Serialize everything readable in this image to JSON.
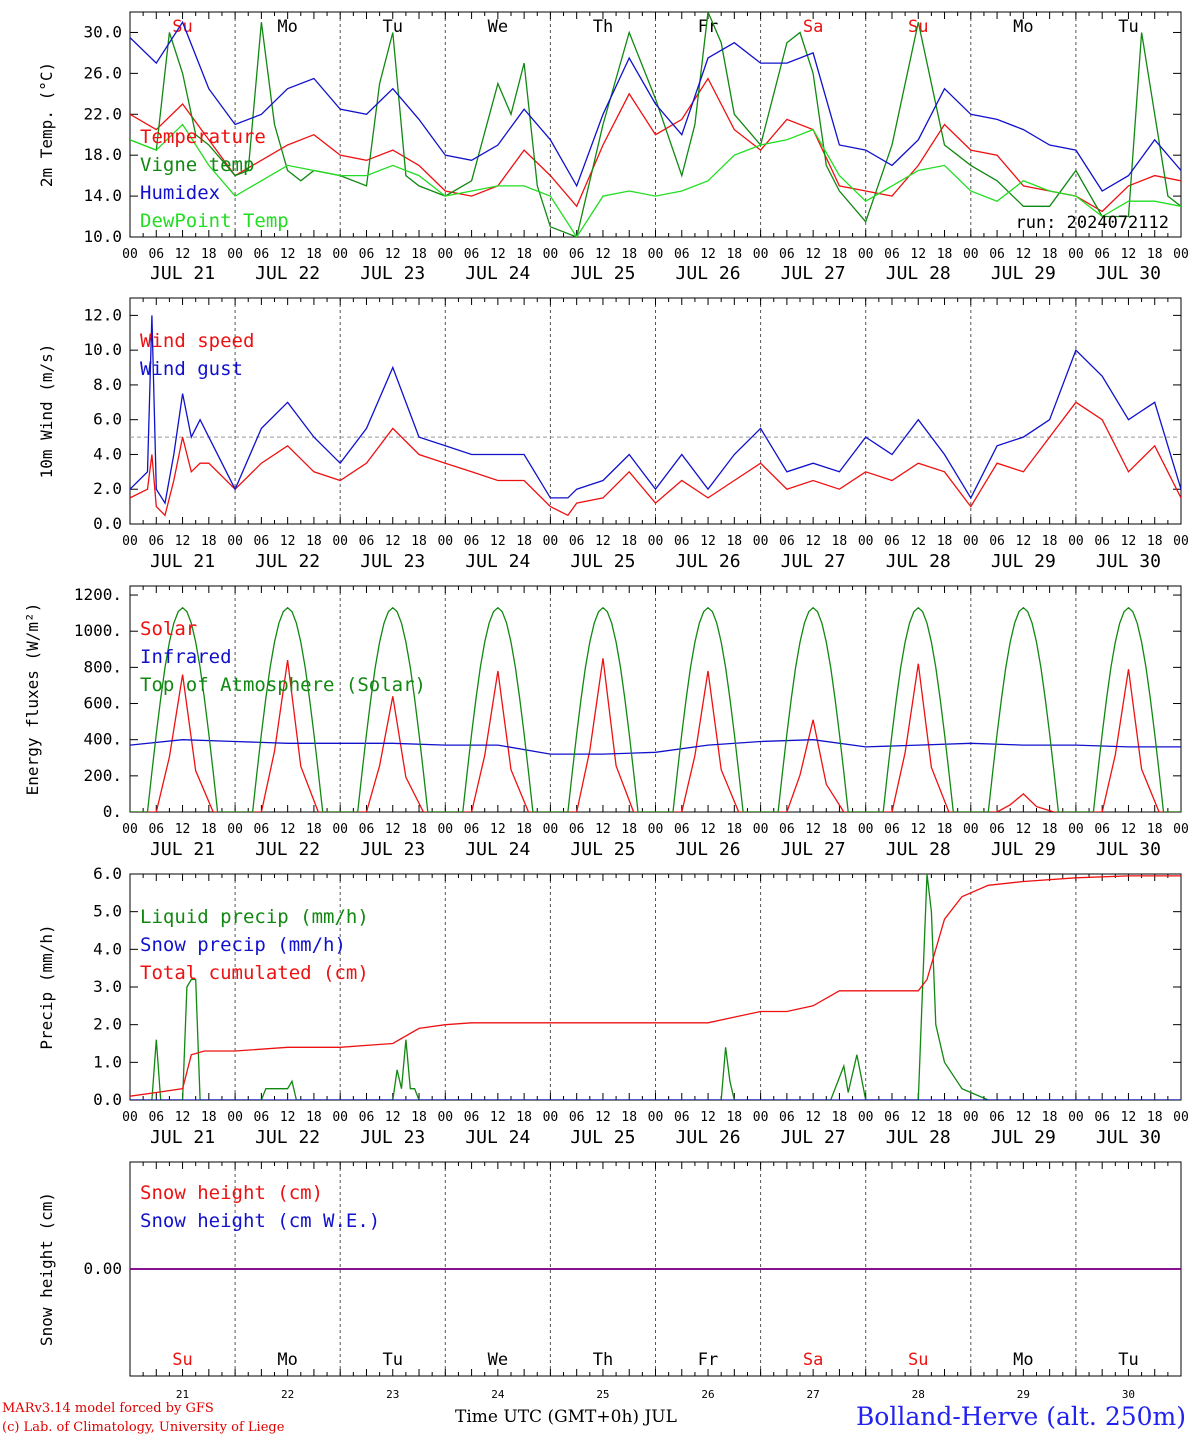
{
  "run_label": "run: 2024072112",
  "footer": {
    "model_credit": "MARv3.14 model forced by GFS",
    "lab_credit": "(c) Lab. of Climatology, University of Liege",
    "xaxis_label": "Time UTC (GMT+0h) JUL",
    "station": "Bolland-Herve (alt. 250m)"
  },
  "colors": {
    "red": "#ee1111",
    "green": "#118811",
    "blue": "#1111cc",
    "lightgreen": "#22dd22",
    "purple": "#880088",
    "grey": "#999999"
  },
  "day_names": [
    "Su",
    "Mo",
    "Tu",
    "We",
    "Th",
    "Fr",
    "Sa",
    "Su",
    "Mo",
    "Tu"
  ],
  "day_name_colors": [
    "red",
    "black",
    "black",
    "black",
    "black",
    "black",
    "red",
    "red",
    "black",
    "black"
  ],
  "day_numbers": [
    "21",
    "22",
    "23",
    "24",
    "25",
    "26",
    "27",
    "28",
    "29",
    "30"
  ],
  "date_labels": [
    "JUL 21",
    "JUL 22",
    "JUL 23",
    "JUL 24",
    "JUL 25",
    "JUL 26",
    "JUL 27",
    "JUL 28",
    "JUL 29",
    "JUL 30"
  ],
  "hour_ticks": [
    "00",
    "06",
    "12",
    "18"
  ],
  "final_hour_tick": "00",
  "chart_data": [
    {
      "type": "line",
      "ylabel": "2m Temp. (°C)",
      "ylim": [
        10,
        32
      ],
      "yticks": [
        "10.0",
        "14.0",
        "18.0",
        "22.0",
        "26.0",
        "30.0"
      ],
      "x_unit": "hours since JUL 21 00 UTC",
      "series": [
        {
          "name": "Temperature",
          "color": "red",
          "x": [
            0,
            6,
            12,
            18,
            24,
            30,
            36,
            42,
            48,
            54,
            60,
            66,
            72,
            78,
            84,
            90,
            96,
            102,
            108,
            114,
            120,
            126,
            132,
            138,
            144,
            150,
            156,
            162,
            168,
            174,
            180,
            186,
            192,
            198,
            204,
            210,
            216,
            222,
            228,
            234,
            240
          ],
          "values": [
            22,
            20.5,
            23,
            19.5,
            16,
            17.5,
            19,
            20,
            18,
            17.5,
            18.5,
            17,
            14.5,
            14,
            15,
            18.5,
            16,
            13,
            19,
            24,
            20,
            21.5,
            25.5,
            20.5,
            18.5,
            21.5,
            20.5,
            15,
            14.5,
            14,
            17,
            21,
            18.5,
            18,
            15,
            14.5,
            14,
            12.5,
            15,
            16,
            15.5
          ]
        },
        {
          "name": "Vigne temp",
          "color": "green",
          "x": [
            0,
            6,
            9,
            12,
            15,
            18,
            24,
            27,
            30,
            33,
            36,
            39,
            42,
            48,
            54,
            57,
            60,
            63,
            66,
            72,
            78,
            84,
            87,
            90,
            93,
            96,
            102,
            108,
            114,
            120,
            126,
            129,
            132,
            135,
            138,
            144,
            150,
            153,
            156,
            159,
            162,
            168,
            174,
            180,
            186,
            189,
            192,
            198,
            204,
            210,
            216,
            222,
            228,
            231,
            234,
            237,
            240
          ],
          "values": [
            19.5,
            18.5,
            30,
            26,
            20,
            19,
            16,
            16.5,
            31,
            21,
            16.5,
            15.5,
            16.5,
            16,
            15,
            25,
            30,
            16,
            15,
            14,
            15.5,
            25,
            22,
            27,
            15,
            11,
            10,
            21,
            30,
            23.5,
            16,
            21,
            32,
            29,
            22,
            19,
            29,
            30,
            26,
            17,
            14.5,
            11.5,
            19,
            31,
            19,
            18,
            17,
            15.5,
            13,
            13,
            16.5,
            12,
            12,
            30,
            22,
            14,
            13
          ]
        },
        {
          "name": "Humidex",
          "color": "blue",
          "x": [
            0,
            6,
            12,
            18,
            24,
            30,
            36,
            42,
            48,
            54,
            60,
            66,
            72,
            78,
            84,
            90,
            96,
            102,
            108,
            114,
            120,
            126,
            132,
            138,
            144,
            150,
            156,
            162,
            168,
            174,
            180,
            186,
            192,
            198,
            204,
            210,
            216,
            222,
            228,
            234,
            240
          ],
          "values": [
            29.5,
            27,
            31,
            24.5,
            21,
            22,
            24.5,
            25.5,
            22.5,
            22,
            24.5,
            21.5,
            18,
            17.5,
            19,
            22.5,
            19.5,
            15,
            22,
            27.5,
            23,
            20,
            27.5,
            29,
            27,
            27,
            28,
            19,
            18.5,
            17,
            19.5,
            24.5,
            22,
            21.5,
            20.5,
            19,
            18.5,
            14.5,
            16,
            19.5,
            16.5
          ]
        },
        {
          "name": "DewPoint Temp",
          "color": "lightgreen",
          "x": [
            0,
            6,
            12,
            18,
            24,
            30,
            36,
            42,
            48,
            54,
            60,
            66,
            72,
            78,
            84,
            90,
            96,
            102,
            108,
            114,
            120,
            126,
            132,
            138,
            144,
            150,
            156,
            162,
            168,
            174,
            180,
            186,
            192,
            198,
            204,
            210,
            216,
            222,
            228,
            234,
            240
          ],
          "values": [
            19.5,
            18.5,
            21,
            17,
            14,
            15.5,
            17,
            16.5,
            16,
            16,
            17,
            16,
            14,
            14.5,
            15,
            15,
            14,
            10,
            14,
            14.5,
            14,
            14.5,
            15.5,
            18,
            19,
            19.5,
            20.5,
            16,
            13.5,
            15,
            16.5,
            17,
            14.5,
            13.5,
            15.5,
            14.5,
            14,
            12,
            13.5,
            13.5,
            13
          ]
        }
      ]
    },
    {
      "type": "line",
      "ylabel": "10m Wind (m/s)",
      "ylim": [
        0,
        13
      ],
      "yticks": [
        "0.0",
        "2.0",
        "4.0",
        "6.0",
        "8.0",
        "10.0",
        "12.0"
      ],
      "reference_line": 5,
      "series": [
        {
          "name": "Wind speed",
          "color": "red",
          "x": [
            0,
            4,
            5,
            6,
            8,
            10,
            12,
            14,
            16,
            18,
            24,
            30,
            36,
            42,
            48,
            54,
            60,
            66,
            72,
            78,
            84,
            90,
            96,
            100,
            102,
            108,
            114,
            120,
            126,
            132,
            138,
            144,
            150,
            156,
            162,
            168,
            174,
            180,
            186,
            192,
            198,
            204,
            210,
            216,
            222,
            228,
            234,
            240
          ],
          "values": [
            1.5,
            2,
            4,
            1,
            0.5,
            2.5,
            5,
            3,
            3.5,
            3.5,
            2,
            3.5,
            4.5,
            3,
            2.5,
            3.5,
            5.5,
            4,
            3.5,
            3,
            2.5,
            2.5,
            1,
            0.5,
            1.2,
            1.5,
            3,
            1.2,
            2.5,
            1.5,
            2.5,
            3.5,
            2,
            2.5,
            2,
            3,
            2.5,
            3.5,
            3,
            1,
            3.5,
            3,
            5,
            7,
            6,
            3,
            4.5,
            1.5
          ]
        },
        {
          "name": "Wind gust",
          "color": "blue",
          "x": [
            0,
            4,
            5,
            6,
            8,
            10,
            12,
            14,
            16,
            18,
            24,
            30,
            36,
            42,
            48,
            54,
            60,
            66,
            72,
            78,
            84,
            90,
            96,
            100,
            102,
            108,
            114,
            120,
            126,
            132,
            138,
            144,
            150,
            156,
            162,
            168,
            174,
            180,
            186,
            192,
            198,
            204,
            210,
            216,
            222,
            228,
            234,
            240
          ],
          "values": [
            2,
            3,
            12,
            2,
            1.2,
            4,
            7.5,
            5,
            6,
            5,
            2,
            5.5,
            7,
            5,
            3.5,
            5.5,
            9,
            5,
            4.5,
            4,
            4,
            4,
            1.5,
            1.5,
            2,
            2.5,
            4,
            2,
            4,
            2,
            4,
            5.5,
            3,
            3.5,
            3,
            5,
            4,
            6,
            4,
            1.5,
            4.5,
            5,
            6,
            10,
            8.5,
            6,
            7,
            2
          ]
        }
      ]
    },
    {
      "type": "line",
      "ylabel": "Energy fluxes (W/m²)",
      "ylim": [
        0,
        1250
      ],
      "yticks": [
        "0.",
        "200.",
        "400.",
        "600.",
        "800.",
        "1000.",
        "1200."
      ],
      "series": [
        {
          "name": "Solar",
          "color": "red",
          "peaks": [
            760,
            840,
            640,
            780,
            850,
            780,
            510,
            820,
            100,
            790
          ],
          "x": [],
          "values": []
        },
        {
          "name": "Infrared",
          "color": "blue",
          "x": [
            0,
            12,
            24,
            36,
            48,
            60,
            72,
            84,
            96,
            108,
            120,
            132,
            144,
            156,
            168,
            180,
            192,
            204,
            216,
            228,
            240
          ],
          "values": [
            370,
            400,
            390,
            380,
            380,
            380,
            370,
            370,
            320,
            320,
            330,
            370,
            390,
            400,
            360,
            370,
            380,
            370,
            370,
            360,
            360
          ]
        },
        {
          "name": "Top of Atmosphere (Solar)",
          "color": "green",
          "peak": 1130,
          "sunrise_hour": 4,
          "sunset_hour": 20,
          "x": [],
          "values": []
        }
      ]
    },
    {
      "type": "line",
      "ylabel": "Precip (mm/h)",
      "ylim": [
        0,
        6
      ],
      "yticks": [
        "0.0",
        "1.0",
        "2.0",
        "3.0",
        "4.0",
        "5.0",
        "6.0"
      ],
      "series": [
        {
          "name": "Liquid precip (mm/h)",
          "color": "green",
          "x": [
            0,
            5,
            6,
            7,
            12,
            13,
            14,
            15,
            16,
            30,
            31,
            36,
            37,
            38,
            54,
            60,
            61,
            62,
            63,
            64,
            65,
            66,
            135,
            136,
            137,
            138,
            150,
            160,
            163,
            164,
            166,
            168,
            172,
            180,
            181,
            182,
            183,
            184,
            186,
            190,
            196,
            230,
            240
          ],
          "values": [
            0,
            0,
            1.6,
            0,
            0,
            3,
            3.2,
            3.2,
            0,
            0,
            0.3,
            0.3,
            0.5,
            0,
            0,
            0,
            0.8,
            0.3,
            1.6,
            0.3,
            0.3,
            0,
            0,
            1.4,
            0.5,
            0,
            0,
            0,
            0.9,
            0.2,
            1.2,
            0,
            0,
            0,
            3,
            6,
            5,
            2,
            1,
            0.3,
            0,
            0,
            0
          ]
        },
        {
          "name": "Snow precip (mm/h)",
          "color": "blue",
          "x": [
            0,
            240
          ],
          "values": [
            0,
            0
          ]
        },
        {
          "name": "Total cumulated (cm)",
          "color": "red",
          "x": [
            0,
            6,
            12,
            14,
            17,
            24,
            36,
            48,
            60,
            66,
            72,
            78,
            84,
            96,
            108,
            120,
            132,
            138,
            144,
            150,
            156,
            162,
            168,
            180,
            182,
            186,
            190,
            196,
            204,
            216,
            228,
            240
          ],
          "values": [
            0.1,
            0.2,
            0.3,
            1.2,
            1.3,
            1.3,
            1.4,
            1.4,
            1.5,
            1.9,
            2,
            2.05,
            2.05,
            2.05,
            2.05,
            2.05,
            2.05,
            2.2,
            2.35,
            2.35,
            2.5,
            2.9,
            2.9,
            2.9,
            3.2,
            4.8,
            5.4,
            5.7,
            5.8,
            5.9,
            5.95,
            5.95
          ]
        }
      ]
    },
    {
      "type": "line",
      "ylabel": "Snow height (cm)",
      "ylim": [
        -1,
        1
      ],
      "yticks": [
        "0.00"
      ],
      "series": [
        {
          "name": "Snow height (cm)",
          "color": "red",
          "x": [
            0,
            240
          ],
          "values": [
            0,
            0
          ]
        },
        {
          "name": "Snow height (cm W.E.)",
          "color": "blue",
          "x": [
            0,
            240
          ],
          "values": [
            0,
            0
          ]
        }
      ]
    }
  ]
}
